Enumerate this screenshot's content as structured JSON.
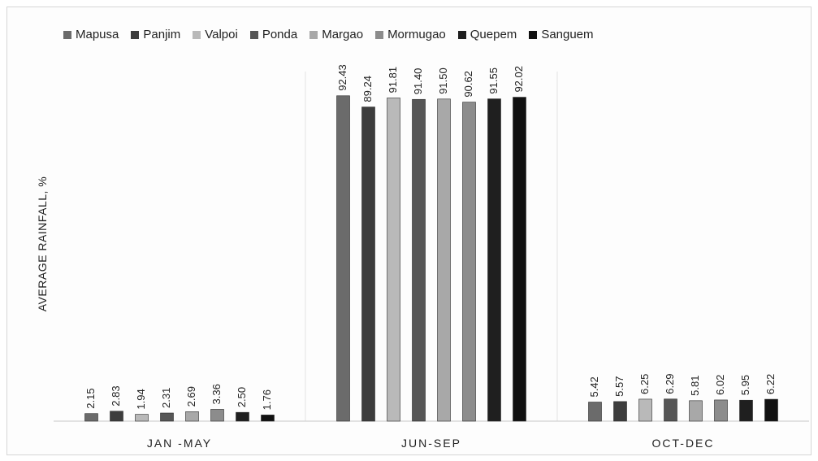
{
  "chart_data": {
    "type": "bar",
    "title": "",
    "xlabel": "",
    "ylabel": "AVERAGE RAINFALL, %",
    "ylim": [
      0,
      100
    ],
    "grid": false,
    "legend_position": "top",
    "categories": [
      "JAN -MAY",
      "JUN-SEP",
      "OCT-DEC"
    ],
    "series": [
      {
        "name": "Mapusa",
        "color": "#6b6b6b",
        "values": [
          2.15,
          92.43,
          5.42
        ]
      },
      {
        "name": "Panjim",
        "color": "#3d3d3d",
        "values": [
          2.83,
          89.24,
          5.57
        ]
      },
      {
        "name": "Valpoi",
        "color": "#b9b9b9",
        "values": [
          1.94,
          91.81,
          6.25
        ]
      },
      {
        "name": "Ponda",
        "color": "#565656",
        "values": [
          2.31,
          91.4,
          6.29
        ]
      },
      {
        "name": "Margao",
        "color": "#a8a8a8",
        "values": [
          2.69,
          91.5,
          5.81
        ]
      },
      {
        "name": "Mormugao",
        "color": "#8c8c8c",
        "values": [
          3.36,
          90.62,
          6.02
        ]
      },
      {
        "name": "Quepem",
        "color": "#1f1f1f",
        "values": [
          2.5,
          91.55,
          5.95
        ]
      },
      {
        "name": "Sanguem",
        "color": "#111111",
        "values": [
          1.76,
          92.02,
          6.22
        ]
      }
    ]
  }
}
